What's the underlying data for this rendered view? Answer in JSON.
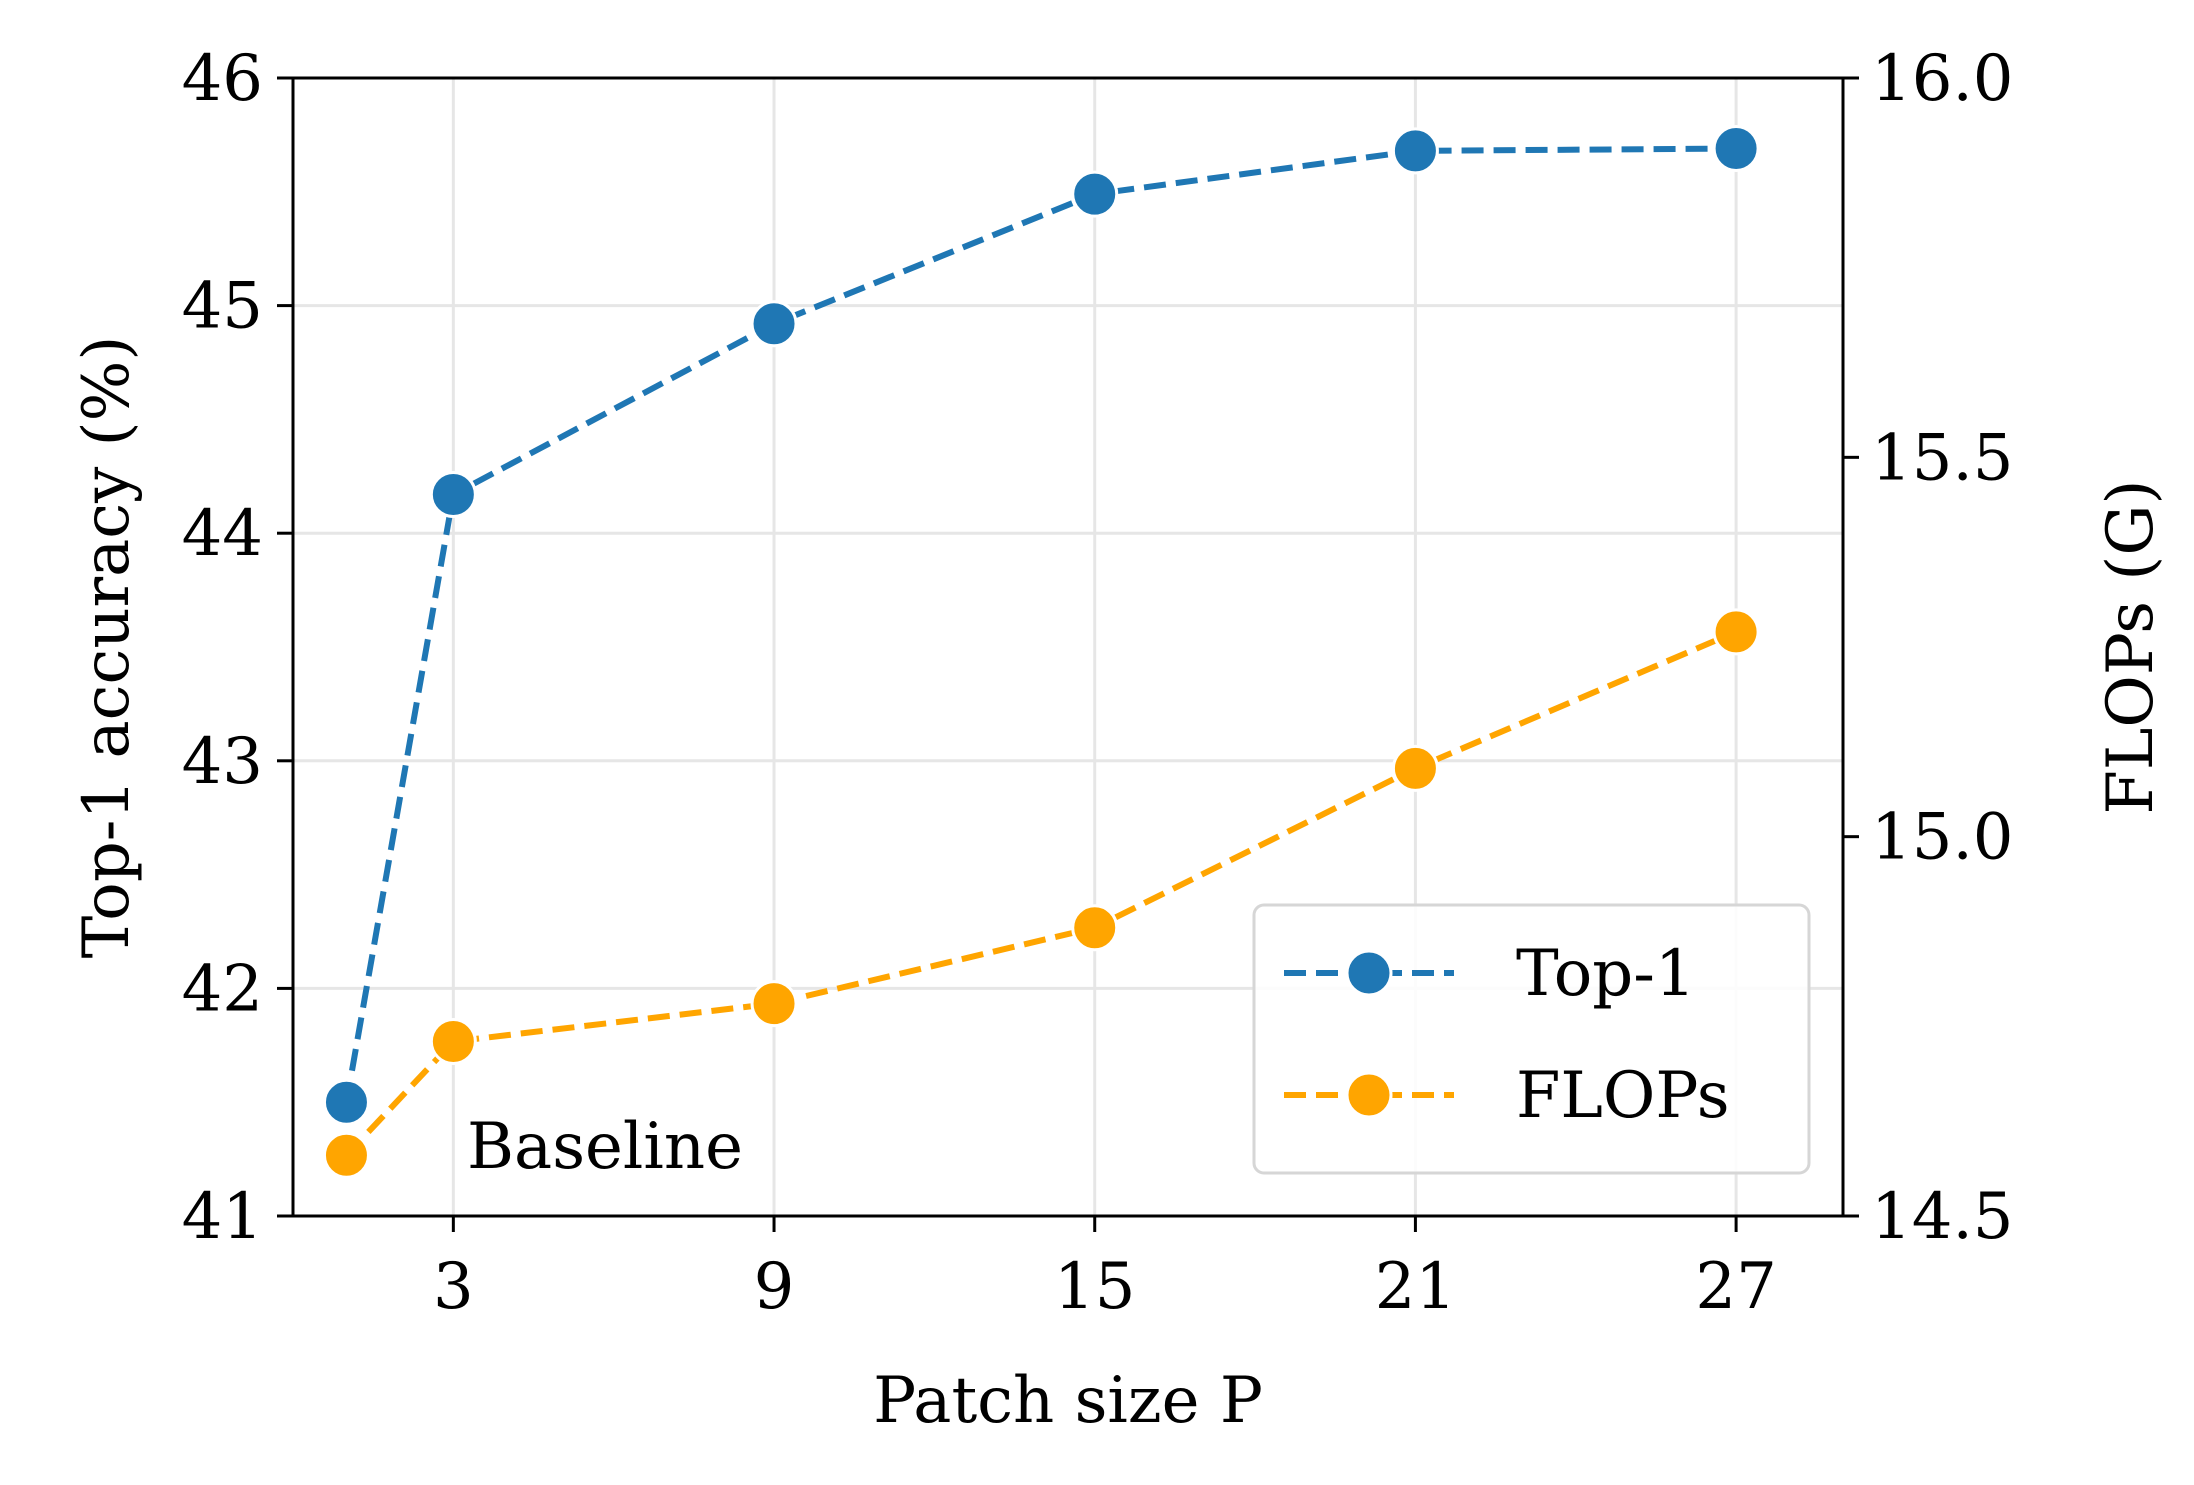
{
  "chart_data": {
    "type": "line",
    "x": [
      1,
      3,
      9,
      15,
      21,
      27
    ],
    "xticks": [
      "3",
      "9",
      "15",
      "21",
      "27"
    ],
    "xtick_values": [
      3,
      9,
      15,
      21,
      27
    ],
    "xlabel": "Patch size P",
    "xlim": [
      0,
      29
    ],
    "ylabel_left": "Top-1 accuracy (%)",
    "ylim_left": [
      41,
      46
    ],
    "yticks_left": [
      "41",
      "42",
      "43",
      "44",
      "45",
      "46"
    ],
    "ytick_values_left": [
      41,
      42,
      43,
      44,
      45,
      46
    ],
    "ylabel_right": "FLOPs (G)",
    "ylim_right": [
      14.5,
      16.0
    ],
    "yticks_right": [
      "14.5",
      "15.0",
      "15.5",
      "16.0"
    ],
    "ytick_values_right": [
      14.5,
      15.0,
      15.5,
      16.0
    ],
    "grid": true,
    "legend_position": "lower-right",
    "series": [
      {
        "name": "Top-1",
        "axis": "left",
        "color": "#1f77b4",
        "style": "dashed",
        "marker": "circle",
        "values": [
          41.5,
          44.17,
          44.92,
          45.49,
          45.68,
          45.69
        ]
      },
      {
        "name": "FLOPs",
        "axis": "right",
        "color": "#ffa500",
        "style": "dashed",
        "marker": "circle",
        "values": [
          14.58,
          14.73,
          14.78,
          14.88,
          15.09,
          15.27
        ]
      }
    ],
    "annotations": [
      {
        "text": "Baseline",
        "x": 1,
        "series": "FLOPs"
      }
    ]
  }
}
